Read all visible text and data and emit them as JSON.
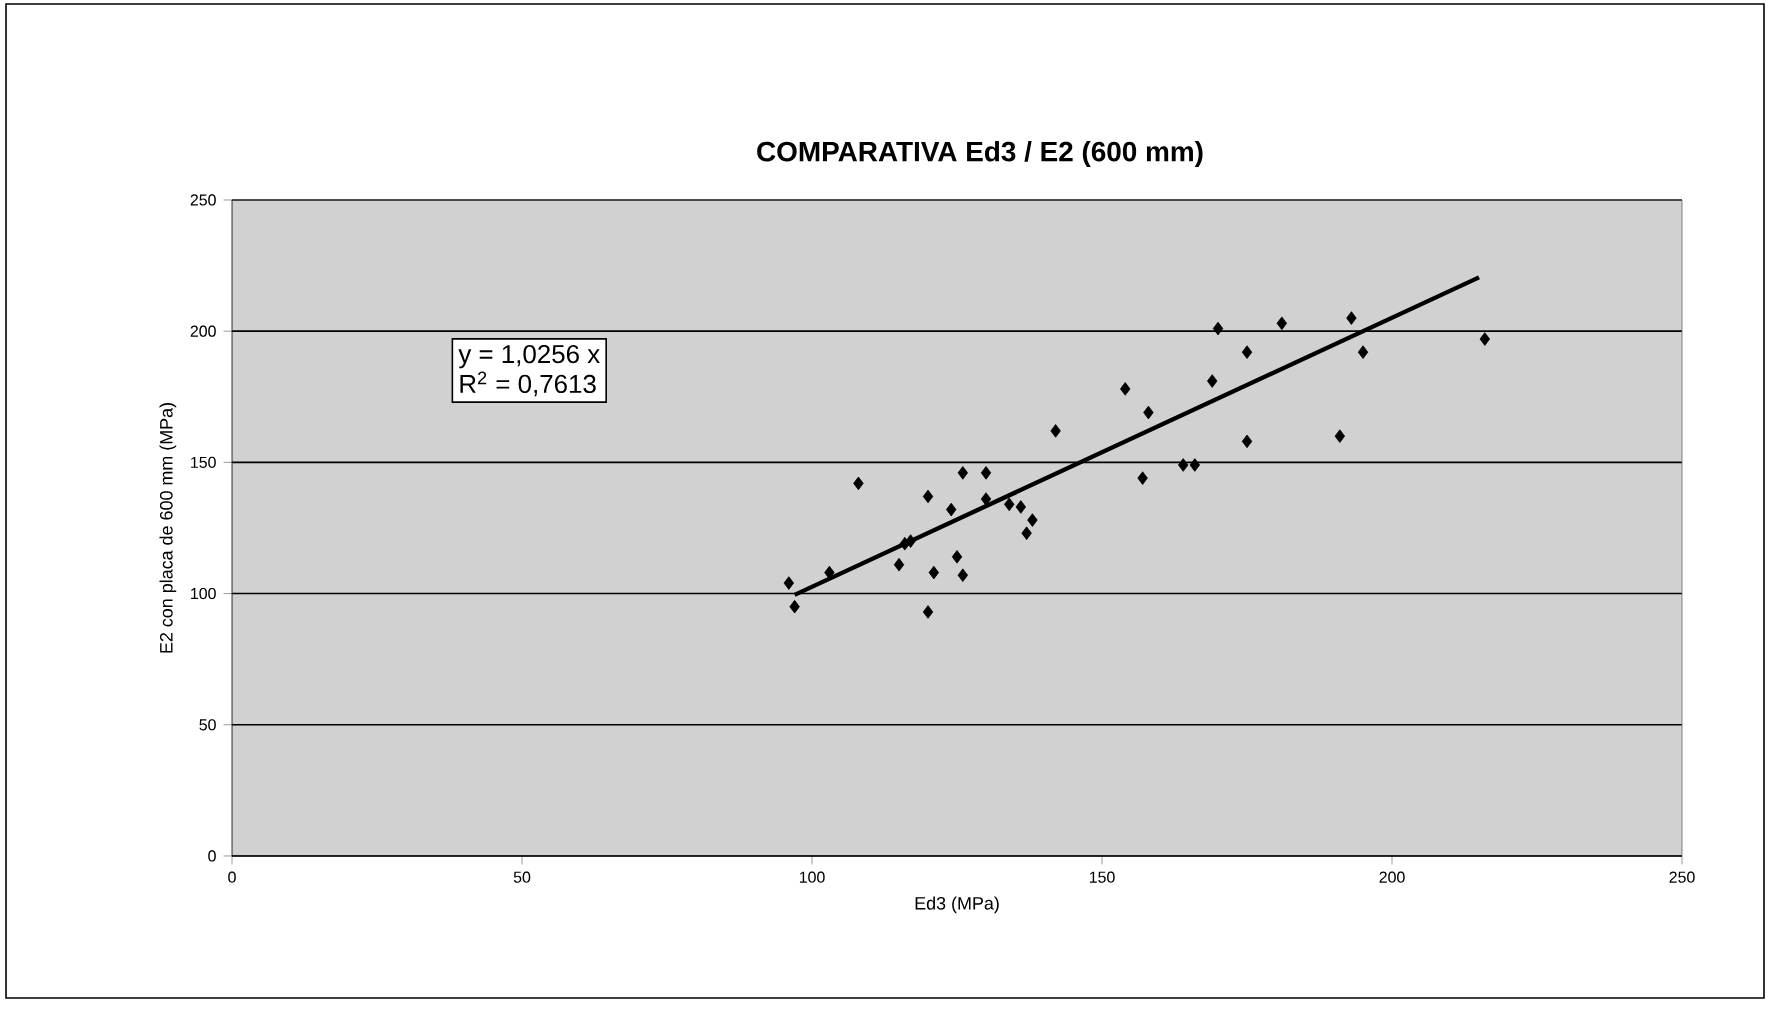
{
  "chart_data": {
    "type": "scatter",
    "title": "COMPARATIVA Ed3 / E2 (600 mm)",
    "xlabel": "Ed3 (MPa)",
    "ylabel": "E2 con placa de 600 mm (MPa)",
    "xlim": [
      0,
      250
    ],
    "ylim": [
      0,
      250
    ],
    "xticks": [
      0,
      50,
      100,
      150,
      200,
      250
    ],
    "yticks": [
      0,
      50,
      100,
      150,
      200,
      250
    ],
    "grid": "y",
    "annotations": [
      "y = 1,0256 x",
      "R$^{2}$ = 0,7613"
    ],
    "series": [
      {
        "color": "#000000",
        "marker": "diamond",
        "x": [
          154,
          158,
          142,
          164,
          157,
          126,
          130,
          108,
          120,
          130,
          124,
          136,
          138,
          137,
          116,
          115,
          125,
          121,
          126,
          103,
          96,
          97,
          120,
          170,
          181,
          193,
          175,
          169,
          195,
          175,
          191,
          166,
          216,
          134,
          117
        ],
        "values": [
          178,
          169,
          162,
          149,
          144,
          146,
          146,
          142,
          137,
          136,
          132,
          133,
          128,
          123,
          119,
          111,
          114,
          108,
          107,
          108,
          104,
          95,
          93,
          201,
          203,
          205,
          192,
          181,
          192,
          158,
          160,
          149,
          197,
          134,
          120
        ]
      },
      {
        "type": "line",
        "color": "#000000",
        "marker": "none",
        "line_style": "solid",
        "x": [
          97,
          215
        ],
        "values": [
          99.5,
          220.5
        ]
      }
    ]
  }
}
